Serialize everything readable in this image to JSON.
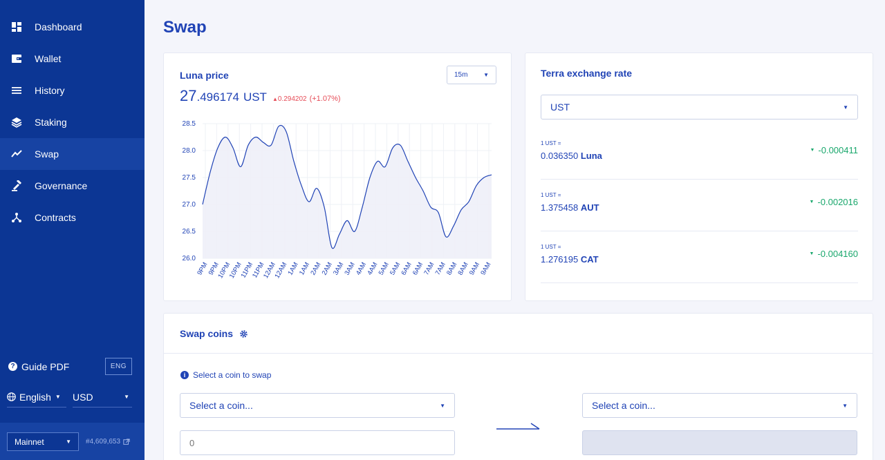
{
  "sidebar": {
    "items": [
      {
        "label": "Dashboard",
        "icon": "dashboard-icon"
      },
      {
        "label": "Wallet",
        "icon": "wallet-icon"
      },
      {
        "label": "History",
        "icon": "history-icon"
      },
      {
        "label": "Staking",
        "icon": "staking-icon"
      },
      {
        "label": "Swap",
        "icon": "swap-icon",
        "active": true
      },
      {
        "label": "Governance",
        "icon": "governance-icon"
      },
      {
        "label": "Contracts",
        "icon": "contracts-icon"
      }
    ],
    "guide_label": "Guide PDF",
    "guide_lang": "ENG",
    "language": "English",
    "currency": "USD",
    "network": "Mainnet",
    "block_height": "#4,609,653"
  },
  "page": {
    "title": "Swap"
  },
  "price": {
    "title": "Luna price",
    "value_int": "27",
    "value_dec": ".496174",
    "unit": "UST",
    "change": "0.294202",
    "change_pct": "(+1.07%)",
    "interval": "15m"
  },
  "chart_data": {
    "type": "area",
    "y_ticks": [
      "28.5",
      "28.0",
      "27.5",
      "27.0",
      "26.5",
      "26.0"
    ],
    "ylim": [
      26.0,
      28.5
    ],
    "x_ticks": [
      "9PM",
      "9PM",
      "10PM",
      "10PM",
      "11PM",
      "11PM",
      "12AM",
      "12AM",
      "1AM",
      "1AM",
      "2AM",
      "2AM",
      "3AM",
      "3AM",
      "4AM",
      "4AM",
      "5AM",
      "5AM",
      "6AM",
      "6AM",
      "7AM",
      "7AM",
      "8AM",
      "8AM",
      "9AM",
      "9AM"
    ],
    "values": [
      27.0,
      27.6,
      28.05,
      28.25,
      28.05,
      27.7,
      28.1,
      28.25,
      28.15,
      28.1,
      28.45,
      28.35,
      27.8,
      27.35,
      27.05,
      27.3,
      26.95,
      26.2,
      26.45,
      26.7,
      26.5,
      26.95,
      27.5,
      27.8,
      27.7,
      28.05,
      28.1,
      27.8,
      27.5,
      27.25,
      26.95,
      26.85,
      26.4,
      26.6,
      26.9,
      27.05,
      27.35,
      27.5,
      27.55
    ]
  },
  "rates": {
    "title": "Terra exchange rate",
    "selected": "UST",
    "rows": [
      {
        "prefix": "1 UST =",
        "amount": "0.036350",
        "denom": "Luna",
        "delta": "-0.000411"
      },
      {
        "prefix": "1 UST =",
        "amount": "1.375458",
        "denom": "AUT",
        "delta": "-0.002016"
      },
      {
        "prefix": "1 UST =",
        "amount": "1.276195",
        "denom": "CAT",
        "delta": "-0.004160"
      }
    ]
  },
  "swap": {
    "title": "Swap coins",
    "hint": "Select a coin to swap",
    "from_placeholder": "Select a coin...",
    "to_placeholder": "Select a coin...",
    "amount_placeholder": "0"
  }
}
